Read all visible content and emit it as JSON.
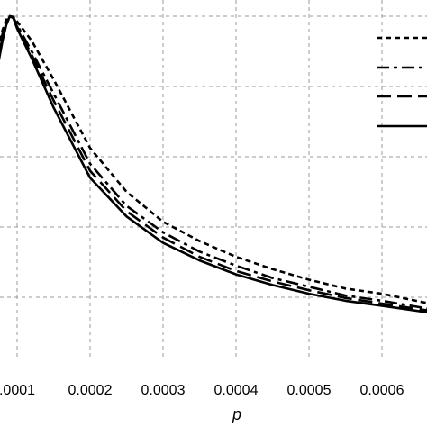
{
  "chart_data": {
    "type": "line",
    "xlabel": "p",
    "ylabel": "",
    "title": "",
    "xlim": [
      7e-05,
      0.00067
    ],
    "ylim": [
      0.0,
      1.05
    ],
    "grid": true,
    "legend_placement": "top-right",
    "x_ticks": [
      0.0001,
      0.0002,
      0.0003,
      0.0004,
      0.0005,
      0.0006
    ],
    "x_tick_labels": [
      ".0001",
      "0.0002",
      "0.0003",
      "0.0004",
      "0.0005",
      "0.0006"
    ],
    "y_grid": [
      0.2,
      0.4,
      0.6,
      0.8,
      1.0
    ],
    "series": [
      {
        "style": "dotted-short-dash",
        "x": [
          7e-05,
          8e-05,
          8.5e-05,
          9e-05,
          9.5e-05,
          0.0001,
          0.00012,
          0.00015,
          0.0002,
          0.00025,
          0.0003,
          0.00035,
          0.0004,
          0.00045,
          0.0005,
          0.00055,
          0.0006,
          0.00067
        ],
        "y": [
          0.88,
          0.96,
          0.99,
          1.0,
          0.998,
          0.985,
          0.93,
          0.82,
          0.625,
          0.5,
          0.415,
          0.36,
          0.315,
          0.28,
          0.25,
          0.225,
          0.21,
          0.18
        ]
      },
      {
        "style": "dash-dot",
        "x": [
          7e-05,
          8e-05,
          8.5e-05,
          9e-05,
          9.5e-05,
          0.0001,
          0.00012,
          0.00015,
          0.0002,
          0.00025,
          0.0003,
          0.00035,
          0.0004,
          0.00045,
          0.0005,
          0.00055,
          0.0006,
          0.00067
        ],
        "y": [
          0.86,
          0.95,
          0.985,
          1.0,
          0.996,
          0.975,
          0.9,
          0.78,
          0.58,
          0.46,
          0.385,
          0.33,
          0.29,
          0.255,
          0.23,
          0.205,
          0.19,
          0.165
        ]
      },
      {
        "style": "long-dash",
        "x": [
          7e-05,
          8e-05,
          8.5e-05,
          9e-05,
          9.5e-05,
          0.0001,
          0.00012,
          0.00015,
          0.0002,
          0.00025,
          0.0003,
          0.00035,
          0.0004,
          0.00045,
          0.0005,
          0.00055,
          0.0006,
          0.00067
        ],
        "y": [
          0.84,
          0.94,
          0.98,
          1.0,
          0.995,
          0.97,
          0.89,
          0.76,
          0.56,
          0.445,
          0.37,
          0.315,
          0.275,
          0.245,
          0.22,
          0.198,
          0.182,
          0.16
        ]
      },
      {
        "style": "solid",
        "x": [
          7e-05,
          8e-05,
          8.5e-05,
          9e-05,
          9.5e-05,
          0.0001,
          0.00012,
          0.00015,
          0.0002,
          0.00025,
          0.0003,
          0.00035,
          0.0004,
          0.00045,
          0.0005,
          0.00055,
          0.0006,
          0.00067
        ],
        "y": [
          0.82,
          0.93,
          0.975,
          1.0,
          0.994,
          0.965,
          0.88,
          0.74,
          0.54,
          0.43,
          0.355,
          0.305,
          0.265,
          0.235,
          0.21,
          0.19,
          0.176,
          0.155
        ]
      }
    ]
  }
}
